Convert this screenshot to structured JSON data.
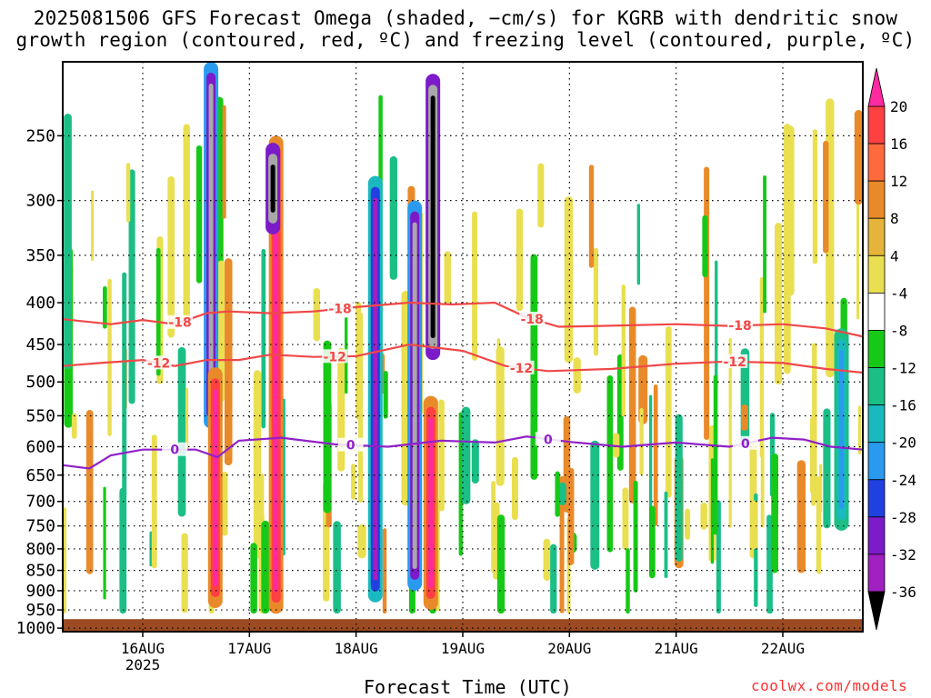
{
  "title_line1": "2025081506 GFS Forecast Omega (shaded, −cm/s) for KGRB with dendritic snow",
  "title_line2": "growth region (contoured, red, ºC) and freezing level (contoured, purple, ºC)",
  "xlabel": "Forecast Time (UTC)",
  "credit": "coolwx.com/models",
  "chart_data": {
    "type": "heatmap",
    "variable": "Omega (shaded, −cm/s)",
    "station": "KGRB",
    "init": "2025081506",
    "y_axis": {
      "label": "",
      "scale": "log-pressure",
      "reversed": true,
      "ticks": [
        250,
        300,
        350,
        400,
        450,
        500,
        550,
        600,
        650,
        700,
        750,
        800,
        850,
        900,
        950,
        1000
      ],
      "range_hPa": [
        1010,
        203
      ]
    },
    "x_axis": {
      "label": "Forecast Time (UTC)",
      "range_days_aug": [
        15.25,
        22.75
      ],
      "ticks": [
        {
          "day": 16,
          "label": "16AUG",
          "sub": "2025"
        },
        {
          "day": 17,
          "label": "17AUG",
          "sub": ""
        },
        {
          "day": 18,
          "label": "18AUG",
          "sub": ""
        },
        {
          "day": 19,
          "label": "19AUG",
          "sub": ""
        },
        {
          "day": 20,
          "label": "20AUG",
          "sub": ""
        },
        {
          "day": 21,
          "label": "21AUG",
          "sub": ""
        },
        {
          "day": 22,
          "label": "22AUG",
          "sub": ""
        }
      ]
    },
    "grid": true,
    "colorbar": {
      "labels": [
        20,
        16,
        12,
        8,
        4,
        -4,
        -8,
        -12,
        -16,
        -20,
        -24,
        -28,
        -32,
        -36
      ],
      "colors": [
        "#f0f0f0",
        "#ff4040",
        "#ff6a3d",
        "#e98a2a",
        "#e6b43a",
        "#e9df50",
        "#ffffff",
        "#17c917",
        "#1bbf86",
        "#1ab9c0",
        "#2a9aee",
        "#2040e0",
        "#7b1bc9",
        "#a020c0",
        "#a8a8a8",
        "#000000"
      ],
      "top_color": "#ff2aa0",
      "bottom_color": "#000000"
    },
    "contours": [
      {
        "value": "-18",
        "color": "#f04848",
        "points": [
          [
            15.25,
            419
          ],
          [
            15.7,
            425
          ],
          [
            16.0,
            420
          ],
          [
            16.3,
            425
          ],
          [
            16.6,
            412
          ],
          [
            16.8,
            410
          ],
          [
            17.2,
            412
          ],
          [
            17.6,
            410
          ],
          [
            18.0,
            405
          ],
          [
            18.5,
            400
          ],
          [
            18.9,
            402
          ],
          [
            19.3,
            400
          ],
          [
            19.6,
            417
          ],
          [
            19.9,
            428
          ],
          [
            20.3,
            427
          ],
          [
            21.0,
            425
          ],
          [
            21.5,
            427
          ],
          [
            22.0,
            425
          ],
          [
            22.4,
            430
          ],
          [
            22.75,
            440
          ]
        ],
        "labels": [
          [
            16.35,
            "-18"
          ],
          [
            17.85,
            "-18"
          ],
          [
            19.65,
            "-18"
          ],
          [
            21.6,
            "-18"
          ]
        ]
      },
      {
        "value": "-12",
        "color": "#f04848",
        "points": [
          [
            15.25,
            478
          ],
          [
            15.6,
            474
          ],
          [
            16.0,
            470
          ],
          [
            16.3,
            478
          ],
          [
            16.6,
            470
          ],
          [
            16.9,
            470
          ],
          [
            17.2,
            463
          ],
          [
            17.6,
            466
          ],
          [
            18.0,
            465
          ],
          [
            18.5,
            450
          ],
          [
            19.0,
            458
          ],
          [
            19.4,
            478
          ],
          [
            19.8,
            485
          ],
          [
            20.4,
            482
          ],
          [
            21.0,
            475
          ],
          [
            21.5,
            472
          ],
          [
            22.0,
            474
          ],
          [
            22.4,
            482
          ],
          [
            22.75,
            487
          ]
        ],
        "labels": [
          [
            16.15,
            "-12"
          ],
          [
            17.8,
            "-12"
          ],
          [
            19.55,
            "-12"
          ],
          [
            21.55,
            "-12"
          ]
        ]
      },
      {
        "value": "0",
        "color": "#9020c8",
        "points": [
          [
            15.25,
            632
          ],
          [
            15.5,
            638
          ],
          [
            15.7,
            615
          ],
          [
            16.0,
            605
          ],
          [
            16.5,
            605
          ],
          [
            16.7,
            618
          ],
          [
            16.9,
            590
          ],
          [
            17.3,
            585
          ],
          [
            17.8,
            596
          ],
          [
            18.3,
            600
          ],
          [
            18.8,
            590
          ],
          [
            19.3,
            593
          ],
          [
            19.6,
            583
          ],
          [
            20.0,
            592
          ],
          [
            20.5,
            600
          ],
          [
            21.0,
            593
          ],
          [
            21.5,
            600
          ],
          [
            21.9,
            585
          ],
          [
            22.2,
            588
          ],
          [
            22.45,
            600
          ],
          [
            22.75,
            605
          ]
        ],
        "labels": [
          [
            16.3,
            "0"
          ],
          [
            17.95,
            "0"
          ],
          [
            19.8,
            "0"
          ],
          [
            21.65,
            "0"
          ]
        ]
      }
    ],
    "omega_features": [
      {
        "day": 16.64,
        "p_top": 203,
        "p_bot": 570,
        "values": [
          -16,
          -24,
          -32
        ],
        "note": "ascent column near 16AUG 15Z"
      },
      {
        "day": 16.68,
        "p_top": 480,
        "p_bot": 945,
        "values": [
          8,
          16,
          20
        ],
        "note": "descent column"
      },
      {
        "day": 17.25,
        "p_top": 250,
        "p_bot": 960,
        "values": [
          8,
          16,
          20
        ],
        "note": "descent column"
      },
      {
        "day": 17.22,
        "p_top": 255,
        "p_bot": 330,
        "values": [
          -24,
          -32,
          -36
        ],
        "note": "strong ascent aloft"
      },
      {
        "day": 18.18,
        "p_top": 280,
        "p_bot": 930,
        "values": [
          -12,
          -20,
          -28
        ],
        "note": "ascent column"
      },
      {
        "day": 18.55,
        "p_top": 300,
        "p_bot": 900,
        "values": [
          -16,
          -24,
          -32
        ],
        "note": "ascent column"
      },
      {
        "day": 18.72,
        "p_top": 210,
        "p_bot": 470,
        "values": [
          -24,
          -32,
          -36
        ],
        "note": "strongest ascent aloft"
      },
      {
        "day": 18.7,
        "p_top": 520,
        "p_bot": 950,
        "values": [
          8,
          16,
          20
        ],
        "note": "descent column"
      },
      {
        "day": 22.55,
        "p_top": 430,
        "p_bot": 760,
        "values": [
          -8,
          -12,
          -16
        ],
        "note": "ascent column"
      }
    ],
    "terrain": {
      "color": "#9b4a22",
      "p_top": 975
    }
  }
}
